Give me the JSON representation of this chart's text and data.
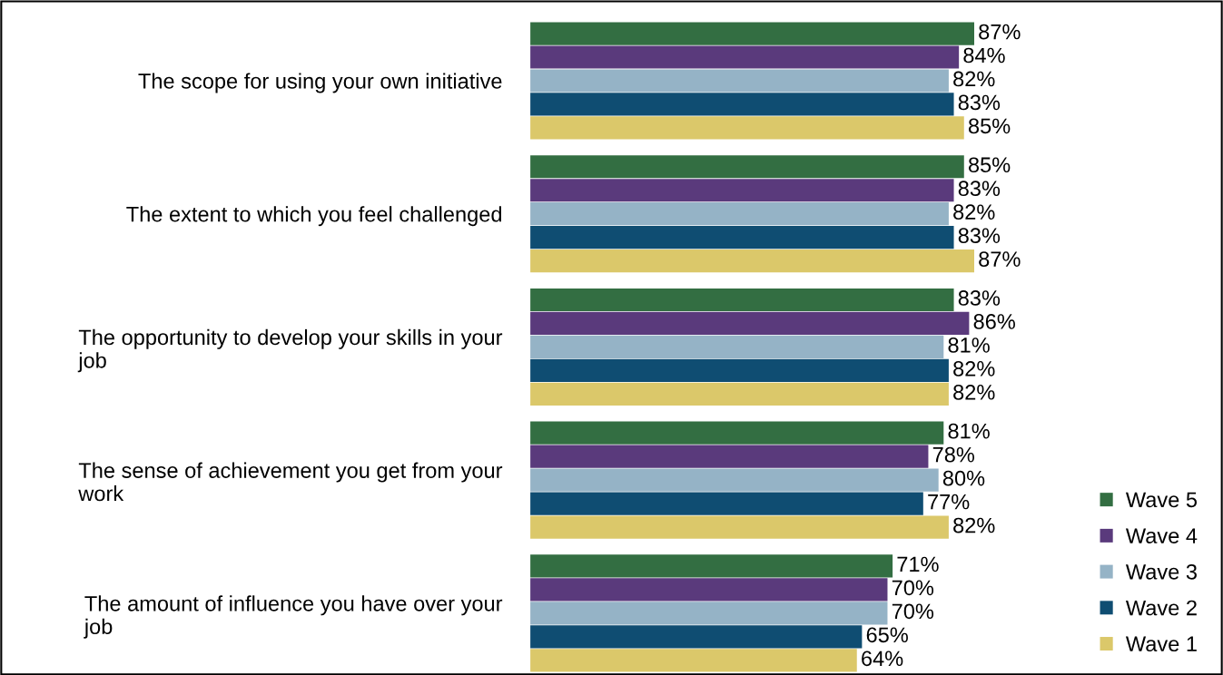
{
  "chart_data": {
    "type": "bar",
    "orientation": "horizontal",
    "categories": [
      "The scope for using your own initiative",
      "The extent to which you feel challenged",
      "The opportunity to develop your skills in your\njob",
      "The sense of achievement you get from your\nwork",
      "The amount of influence you have over your\njob"
    ],
    "series": [
      {
        "name": "Wave 5",
        "color": "#336e42",
        "values": [
          87,
          85,
          83,
          81,
          71
        ],
        "value_labels": [
          "87%",
          "85%",
          "83%",
          "81%",
          "71%"
        ]
      },
      {
        "name": "Wave 4",
        "color": "#5a3a7c",
        "values": [
          84,
          83,
          86,
          78,
          70
        ],
        "value_labels": [
          "84%",
          "83%",
          "86%",
          "78%",
          "70%"
        ]
      },
      {
        "name": "Wave 3",
        "color": "#95b3c6",
        "values": [
          82,
          82,
          81,
          80,
          70
        ],
        "value_labels": [
          "82%",
          "82%",
          "81%",
          "80%",
          "70%"
        ]
      },
      {
        "name": "Wave 2",
        "color": "#0f4d72",
        "values": [
          83,
          83,
          82,
          77,
          65
        ],
        "value_labels": [
          "83%",
          "83%",
          "82%",
          "77%",
          "65%"
        ]
      },
      {
        "name": "Wave 1",
        "color": "#dbc86a",
        "values": [
          85,
          87,
          82,
          82,
          64
        ],
        "value_labels": [
          "85%",
          "87%",
          "82%",
          "82%",
          "64%"
        ]
      }
    ],
    "grid": false,
    "legend": "bottom right"
  }
}
